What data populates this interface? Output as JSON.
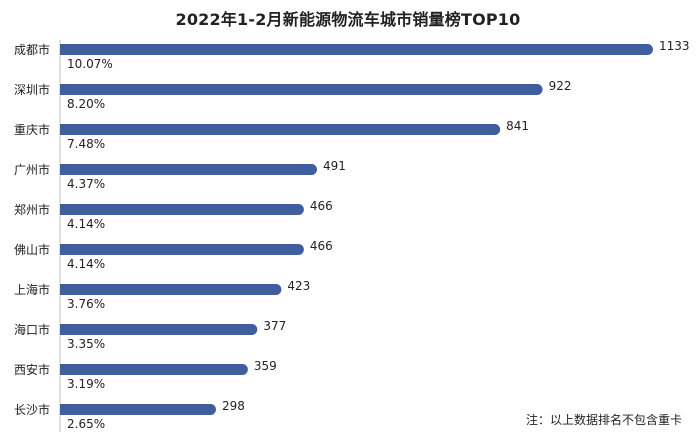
{
  "chart_data": {
    "type": "bar",
    "orientation": "horizontal",
    "title": "2022年1-2月新能源物流车城市销量榜TOP10",
    "categories": [
      "成都市",
      "深圳市",
      "重庆市",
      "广州市",
      "郑州市",
      "佛山市",
      "上海市",
      "海口市",
      "西安市",
      "长沙市"
    ],
    "values": [
      1133,
      922,
      841,
      491,
      466,
      466,
      423,
      377,
      359,
      298
    ],
    "shares": [
      "10.07%",
      "8.20%",
      "7.48%",
      "4.37%",
      "4.14%",
      "4.14%",
      "3.76%",
      "3.35%",
      "3.19%",
      "2.65%"
    ],
    "xlim": [
      0,
      1133
    ],
    "grid": false,
    "legend": "none",
    "bar_color": "#3f5ea0",
    "note": "注：以上数据排名不包含重卡"
  }
}
